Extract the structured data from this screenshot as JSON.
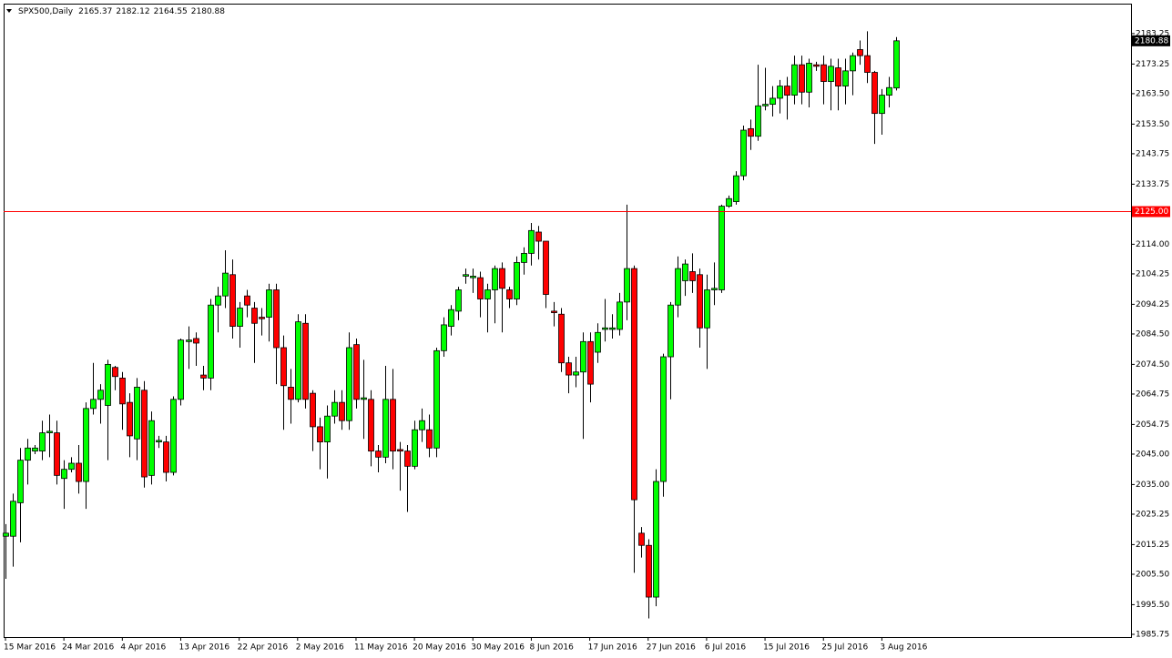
{
  "chart_data": {
    "type": "candlestick",
    "title": "SPX500,Daily",
    "up_color": "#00ff00",
    "down_color": "#ff0000",
    "categories": [
      "15 Mar 2016",
      null,
      null,
      null,
      null,
      null,
      null,
      null,
      "24 Mar 2016",
      null,
      null,
      null,
      null,
      null,
      null,
      null,
      "4 Apr 2016",
      null,
      null,
      null,
      null,
      null,
      null,
      null,
      "13 Apr 2016",
      null,
      null,
      null,
      null,
      null,
      null,
      null,
      "22 Apr 2016",
      null,
      null,
      null,
      null,
      null,
      null,
      null,
      "2 May 2016",
      null,
      null,
      null,
      null,
      null,
      null,
      null,
      "11 May 2016",
      null,
      null,
      null,
      null,
      null,
      null,
      null,
      "20 May 2016",
      null,
      null,
      null,
      null,
      null,
      null,
      null,
      "30 May 2016",
      null,
      null,
      null,
      null,
      null,
      null,
      null,
      "8 Jun 2016",
      null,
      null,
      null,
      null,
      null,
      null,
      null,
      "17 Jun 2016",
      null,
      null,
      null,
      null,
      null,
      null,
      null,
      "27 Jun 2016",
      null,
      null,
      null,
      null,
      null,
      null,
      null,
      "6 Jul 2016",
      null,
      null,
      null,
      null,
      null,
      null,
      null,
      "15 Jul 2016",
      null,
      null,
      null,
      null,
      null,
      null,
      null,
      "25 Jul 2016",
      null,
      null,
      null,
      null,
      null,
      null,
      null,
      "3 Aug 2016",
      null,
      null
    ],
    "open": [
      2018,
      2018,
      2029,
      2043,
      2046,
      2046,
      2052,
      2052,
      2037,
      2040,
      2042,
      2036,
      2060,
      2063,
      2061,
      2073.5,
      2070,
      2062,
      2050,
      2066,
      2038,
      2049,
      2049,
      2039,
      2063,
      2082,
      2083,
      2071,
      2070,
      2094,
      2097,
      2104,
      2087,
      2097,
      2093,
      2090,
      2090,
      2099,
      2080,
      2067,
      2063,
      2088,
      2065,
      2054,
      2049,
      2057.5,
      2062,
      2056,
      2081,
      2063,
      2063,
      2046,
      2044,
      2063,
      2046.5,
      2046,
      2041,
      2053,
      2053,
      2047,
      2079,
      2087,
      2092,
      2103.5,
      2103,
      2103,
      2096,
      2099,
      2106,
      2099,
      2096,
      2108,
      2111,
      2118,
      2115,
      2092,
      2091,
      2075,
      2071,
      2072,
      2082,
      2078.5,
      2086,
      2086,
      2086,
      2095,
      2106,
      2019,
      2015,
      1998,
      2036,
      2077,
      2094,
      2102,
      2105,
      2104,
      2086.5,
      2099,
      2099,
      2126.5,
      2128,
      2136.5,
      2152,
      2149.5,
      2159.5,
      2160,
      2162,
      2166,
      2163,
      2173,
      2164,
      2173,
      2173,
      2167.5,
      2172,
      2166,
      2171,
      2178,
      2176,
      2170.5,
      2157,
      2163,
      2165.37
    ],
    "high": [
      2022,
      2032,
      2047,
      2050,
      2048,
      2056,
      2058,
      2056,
      2043,
      2044,
      2048,
      2062,
      2075,
      2068,
      2076,
      2074,
      2072,
      2065,
      2070,
      2069,
      2059,
      2051,
      2051,
      2064,
      2083,
      2087,
      2085,
      2074,
      2096,
      2100,
      2112,
      2109,
      2095,
      2099,
      2095,
      2093,
      2101,
      2101,
      2084,
      2073,
      2091,
      2091,
      2066,
      2057,
      2061,
      2066,
      2066,
      2085,
      2083,
      2076,
      2066,
      2048,
      2074,
      2073,
      2049,
      2048,
      2056,
      2060,
      2058,
      2080,
      2090,
      2094,
      2100,
      2106,
      2106,
      2105,
      2101,
      2107,
      2108,
      2100,
      2110,
      2113,
      2121,
      2120,
      2115,
      2095,
      2093,
      2077,
      2077,
      2085,
      2085,
      2088,
      2096,
      2091,
      2098,
      2127,
      2107,
      2021,
      2017,
      2040,
      2078,
      2095,
      2110,
      2109,
      2111,
      2106,
      2104,
      2108,
      2127,
      2130,
      2138,
      2153,
      2155,
      2173,
      2172,
      2166,
      2168,
      2169,
      2176,
      2176,
      2175,
      2174,
      2176,
      2175,
      2175,
      2175,
      2177,
      2181,
      2184,
      2171,
      2165,
      2169,
      2182.12
    ],
    "low": [
      2004,
      2008,
      2016,
      2035,
      2045,
      2043,
      2044,
      2035,
      2027,
      2039,
      2032,
      2027,
      2058,
      2055,
      2043,
      2066,
      2053,
      2044,
      2043,
      2034,
      2035,
      2047,
      2036,
      2038,
      2061,
      2073,
      2074,
      2066,
      2066,
      2085,
      2093,
      2083,
      2080,
      2090,
      2075,
      2084,
      2082,
      2068,
      2053,
      2055,
      2062,
      2060,
      2046,
      2040,
      2037,
      2055,
      2053,
      2053,
      2060,
      2050,
      2041,
      2039,
      2042,
      2040,
      2033,
      2026,
      2040,
      2049,
      2044,
      2044,
      2077,
      2084,
      2089,
      2101,
      2098,
      2090,
      2085,
      2088,
      2085,
      2093,
      2094,
      2104,
      2107,
      2109,
      2093,
      2087,
      2072,
      2065,
      2067,
      2050,
      2062,
      2075,
      2082,
      2083,
      2084,
      2089,
      2006,
      2011,
      1991,
      1995,
      2031,
      2063,
      2090,
      2097,
      2098,
      2080,
      2073,
      2094,
      2098,
      2126,
      2127,
      2135,
      2145,
      2148,
      2158,
      2156,
      2157,
      2155,
      2160,
      2160,
      2159,
      2171,
      2160,
      2158,
      2158,
      2160,
      2163,
      2173,
      2167,
      2147,
      2150,
      2159,
      2164.55
    ],
    "close": [
      2019,
      2029.5,
      2043,
      2047,
      2047,
      2052,
      2052.5,
      2038,
      2040,
      2042,
      2036,
      2060,
      2063,
      2066,
      2074.5,
      2070.5,
      2061.5,
      2051,
      2067,
      2037.5,
      2056,
      2049.5,
      2039,
      2063,
      2082.5,
      2082.5,
      2081.5,
      2070,
      2094,
      2097,
      2104.5,
      2087,
      2093,
      2094,
      2088,
      2089.5,
      2099,
      2080,
      2067.5,
      2063,
      2088.5,
      2063,
      2054,
      2049,
      2057.5,
      2062,
      2056,
      2080,
      2063,
      2063.5,
      2046,
      2044,
      2063,
      2046,
      2046,
      2041,
      2053,
      2056,
      2047,
      2079,
      2087.5,
      2092.5,
      2099,
      2104,
      2103.5,
      2096,
      2099,
      2106,
      2099.5,
      2096,
      2108,
      2111,
      2118.5,
      2115,
      2097.5,
      2091.5,
      2075,
      2071,
      2072,
      2082,
      2068,
      2085,
      2086.5,
      2086.5,
      2095,
      2106,
      2030,
      2015,
      1998,
      2036,
      2077,
      2094,
      2106,
      2107.5,
      2102,
      2086.5,
      2099,
      2099.5,
      2126.5,
      2129,
      2136.5,
      2151.5,
      2149.5,
      2159.5,
      2160,
      2162,
      2166,
      2163,
      2173,
      2164,
      2173.5,
      2172.5,
      2167.5,
      2172.5,
      2166,
      2171,
      2176,
      2176,
      2170.5,
      2157,
      2163,
      2165.5,
      2180.88
    ],
    "ylim": [
      1984.85,
      2193.1
    ],
    "yticks": [
      2183.25,
      2173.25,
      {
        "value": 2163.5,
        "label": "2163.50"
      },
      {
        "value": 2153.5,
        "label": "2153.50"
      },
      2143.75,
      2133.75,
      {
        "value": 2114,
        "label": "2114.00"
      },
      2104.25,
      2094.25,
      {
        "value": 2084.5,
        "label": "2084.50"
      },
      {
        "value": 2074.5,
        "label": "2074.50"
      },
      2064.75,
      2054.75,
      {
        "value": 2045,
        "label": "2045.00"
      },
      {
        "value": 2035,
        "label": "2035.00"
      },
      2025.25,
      2015.25,
      {
        "value": 2005.5,
        "label": "2005.50"
      },
      {
        "value": 1995.5,
        "label": "1995.50"
      },
      1985.75
    ],
    "hline": {
      "value": 2125,
      "label": "2125.00",
      "color": "#ff0000"
    }
  }
}
